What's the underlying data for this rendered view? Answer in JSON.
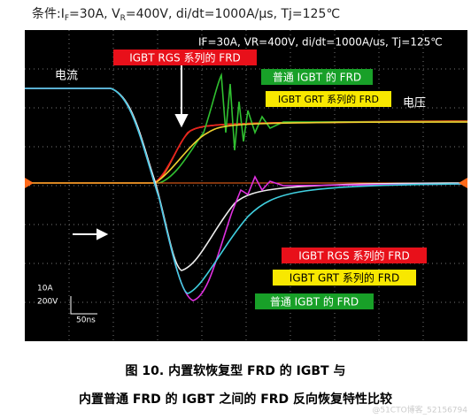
{
  "condition": {
    "parts": [
      "条件:I",
      "F",
      "=30A, V",
      "R",
      "=400V, di/dt=1000A/μs, Tj=125℃"
    ]
  },
  "scope": {
    "header": "IF=30A, VR=400V, di/dt=1000A/us, Tj=125℃",
    "current_label": "电流",
    "voltage_label": "电压",
    "scale": {
      "current": "10A",
      "voltage": "200V",
      "time": "50ns"
    },
    "upper_labels": [
      "IGBT RGS 系列的 FRD",
      "普通 IGBT 的 FRD",
      "IGBT GRT 系列的 FRD"
    ],
    "lower_labels": [
      "IGBT RGS 系列的 FRD",
      "IGBT GRT 系列的 FRD",
      "普通 IGBT 的 FRD"
    ]
  },
  "caption": {
    "line1": "图 10.  内置软恢复型 FRD 的 IGBT 与",
    "line2": "内置普通 FRD 的 IGBT 之间的 FRD 反向恢复特性比较"
  },
  "watermark": "@51CTO博客_52156794"
}
